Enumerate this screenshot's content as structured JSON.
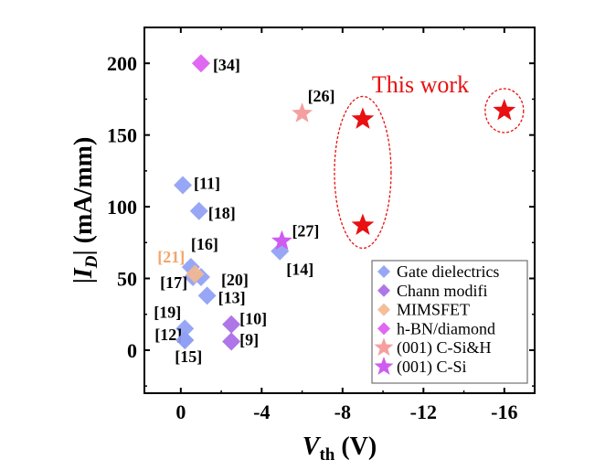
{
  "chart_data": {
    "type": "scatter",
    "title": "",
    "xlabel": "V_th (V)",
    "xlabel_main": "V",
    "xlabel_sub": "th",
    "xlabel_unit": " (V)",
    "ylabel": "|I_D| (mA/mm)",
    "ylabel_pre": "|",
    "ylabel_main": "I",
    "ylabel_sub": "D",
    "ylabel_post": "| (mA/mm)",
    "xlim": [
      1.8,
      -17.5
    ],
    "ylim": [
      -30,
      225
    ],
    "x_ticks": [
      0,
      -4,
      -8,
      -12,
      -16
    ],
    "x_tick_labels": [
      "0",
      "-4",
      "-8",
      "-12",
      "-16"
    ],
    "y_ticks": [
      0,
      50,
      100,
      150,
      200
    ],
    "y_tick_labels": [
      "0",
      "50",
      "100",
      "150",
      "200"
    ],
    "legend_position": "bottom-right",
    "series": [
      {
        "name": "Gate dielectrics",
        "marker": "diamond",
        "color": "#8f9ff4",
        "points": [
          {
            "x": -0.1,
            "y": 115,
            "label": "[11]"
          },
          {
            "x": -0.9,
            "y": 97,
            "label": "[18]"
          },
          {
            "x": -0.5,
            "y": 58,
            "label": "[16]"
          },
          {
            "x": -1.0,
            "y": 51,
            "label": "[20]"
          },
          {
            "x": -0.6,
            "y": 51,
            "label": "[17]"
          },
          {
            "x": -1.3,
            "y": 38,
            "label": "[13]"
          },
          {
            "x": -0.2,
            "y": 15,
            "label": "[19]"
          },
          {
            "x": -0.2,
            "y": 7,
            "label": "[12]"
          },
          {
            "x": -0.2,
            "y": 7,
            "label": "[15]"
          },
          {
            "x": -4.9,
            "y": 69,
            "label": "[14]"
          }
        ]
      },
      {
        "name": "Chann modifi",
        "marker": "diamond",
        "color": "#a86ae6",
        "points": [
          {
            "x": -2.5,
            "y": 18,
            "label": "[10]"
          },
          {
            "x": -2.5,
            "y": 6,
            "label": "[9]"
          }
        ]
      },
      {
        "name": "MIMSFET",
        "marker": "diamond",
        "color": "#f3b98f",
        "points": [
          {
            "x": -0.7,
            "y": 53,
            "label": "[21]"
          }
        ]
      },
      {
        "name": "h-BN/diamond",
        "marker": "diamond",
        "color": "#dc5cf0",
        "points": [
          {
            "x": -1.0,
            "y": 200,
            "label": "[34]"
          }
        ]
      },
      {
        "name": "(001) C-Si&H",
        "marker": "star",
        "color": "#f4a0a0",
        "points": [
          {
            "x": -6.0,
            "y": 165,
            "label": "[26]"
          }
        ]
      },
      {
        "name": "(001) C-Si",
        "marker": "star",
        "color": "#cf5cf0",
        "points": [
          {
            "x": -5.0,
            "y": 76,
            "label": "[27]"
          }
        ]
      },
      {
        "name": "This work",
        "marker": "star",
        "color": "#e81010",
        "in_legend": false,
        "points": [
          {
            "x": -9.0,
            "y": 161,
            "label": ""
          },
          {
            "x": -9.0,
            "y": 87,
            "label": ""
          },
          {
            "x": -16.0,
            "y": 167,
            "label": ""
          }
        ]
      }
    ],
    "annotations": [
      {
        "text": "This work",
        "color": "#e81010"
      }
    ]
  }
}
